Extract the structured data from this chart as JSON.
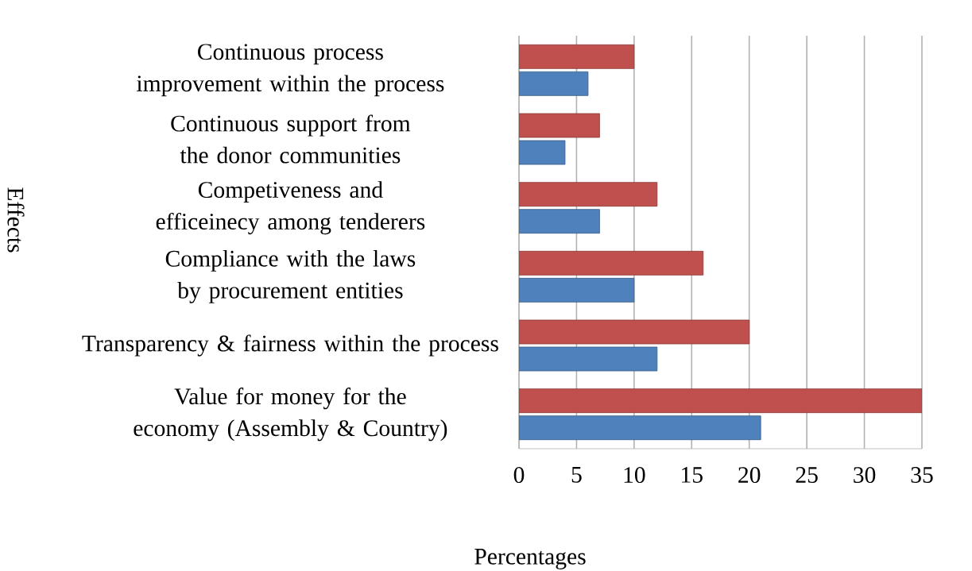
{
  "chart_data": {
    "type": "bar",
    "orientation": "horizontal",
    "xlabel": "Percentages",
    "ylabel": "Effects",
    "categories": [
      "Continuous process improvement within the process",
      "Continuous support from the donor communities",
      "Competiveness  and efficeinecy among tenderers",
      "Compliance with the laws by procurement entities",
      "Transparency & fairness within the process",
      "Value for money for the economy (Assembly & Country)"
    ],
    "series": [
      {
        "color": "#4f81bd",
        "values": [
          6,
          4,
          7,
          10,
          12,
          21
        ]
      },
      {
        "color": "#c0504d",
        "values": [
          10,
          7,
          12,
          16,
          20,
          35
        ]
      }
    ],
    "xlim": [
      0,
      35
    ],
    "xticks": [
      0,
      5,
      10,
      15,
      20,
      25,
      30,
      35
    ],
    "grid": "x"
  }
}
